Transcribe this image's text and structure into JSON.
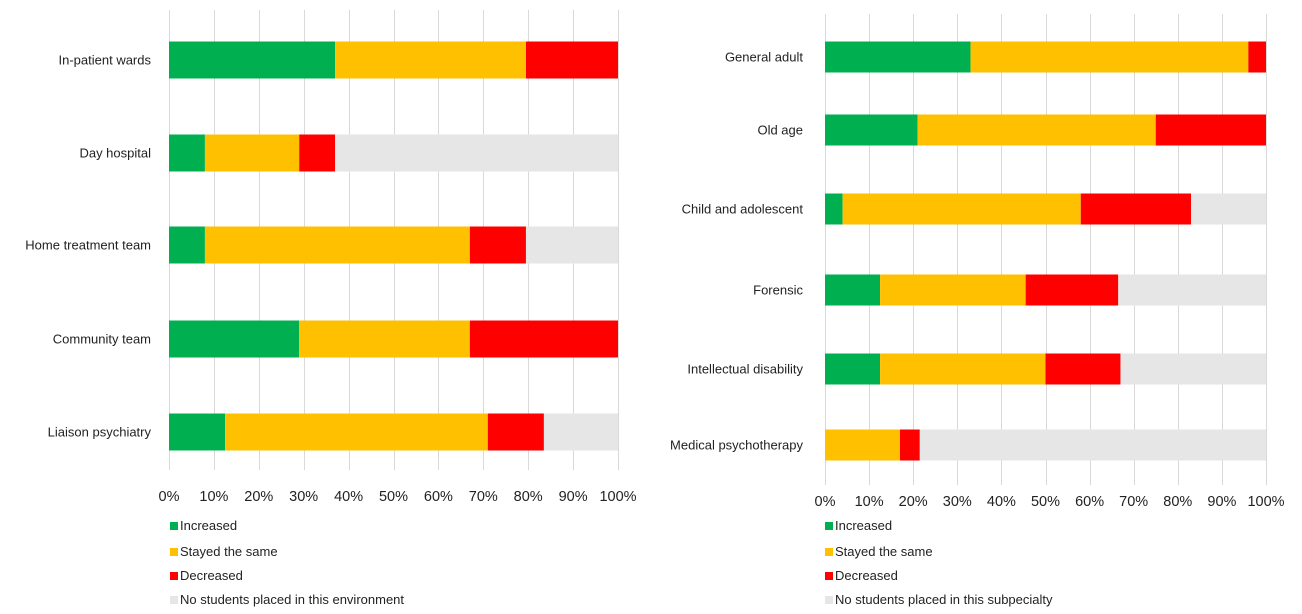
{
  "chart_data": [
    {
      "type": "bar",
      "orientation": "horizontal",
      "stacked": true,
      "categories": [
        "In-patient wards",
        "Day hospital",
        "Home treatment team",
        "Community team",
        "Liaison psychiatry"
      ],
      "series": [
        {
          "name": "Increased",
          "color": "#00b050",
          "values": [
            37,
            8,
            8,
            29,
            12.5
          ]
        },
        {
          "name": "Stayed the same",
          "color": "#ffc000",
          "values": [
            42.5,
            21,
            59,
            38,
            58.5
          ]
        },
        {
          "name": "Decreased",
          "color": "#ff0000",
          "values": [
            20.5,
            8,
            12.5,
            33,
            12.5
          ]
        },
        {
          "name": "No students placed in this environment",
          "color": "#e7e6e6",
          "values": [
            0,
            63,
            20.5,
            0,
            16.5
          ]
        }
      ],
      "xlim": [
        0,
        100
      ],
      "xticks": [
        "0%",
        "10%",
        "20%",
        "30%",
        "40%",
        "50%",
        "60%",
        "70%",
        "80%",
        "90%",
        "100%"
      ],
      "title": "",
      "xlabel": "",
      "ylabel": "",
      "grid": true,
      "legend": "bottom-left"
    },
    {
      "type": "bar",
      "orientation": "horizontal",
      "stacked": true,
      "categories": [
        "General adult",
        "Old age",
        "Child and adolescent",
        "Forensic",
        "Intellectual disability",
        "Medical psychotherapy"
      ],
      "series": [
        {
          "name": "Increased",
          "color": "#00b050",
          "values": [
            33,
            21,
            4,
            12.5,
            12.5,
            0
          ]
        },
        {
          "name": "Stayed the same",
          "color": "#ffc000",
          "values": [
            63,
            54,
            54,
            33,
            37.5,
            17
          ]
        },
        {
          "name": "Decreased",
          "color": "#ff0000",
          "values": [
            4,
            25,
            25,
            21,
            17,
            4.5
          ]
        },
        {
          "name": "No students placed in this subpecialty",
          "color": "#e7e6e6",
          "values": [
            0,
            0,
            17,
            33.5,
            33,
            78.5
          ]
        }
      ],
      "xlim": [
        0,
        100
      ],
      "xticks": [
        "0%",
        "10%",
        "20%",
        "30%",
        "40%",
        "50%",
        "60%",
        "70%",
        "80%",
        "90%",
        "100%"
      ],
      "title": "",
      "xlabel": "",
      "ylabel": "",
      "grid": true,
      "legend": "bottom-left"
    }
  ]
}
